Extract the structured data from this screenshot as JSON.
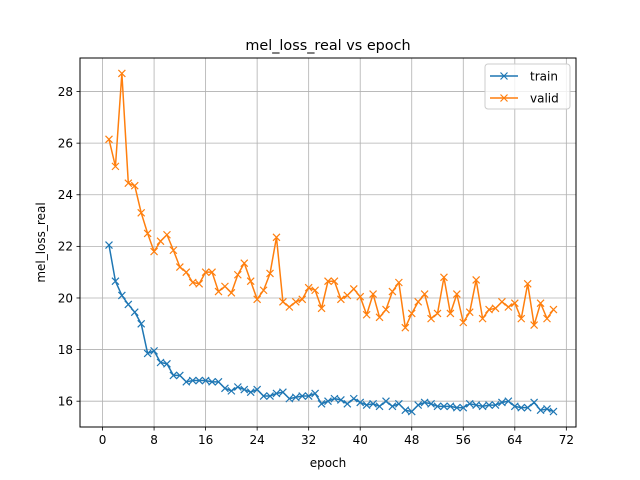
{
  "chart_data": {
    "type": "line",
    "title": "mel_loss_real vs epoch",
    "xlabel": "epoch",
    "ylabel": "mel_loss_real",
    "xlim": [
      -3.5,
      73.5
    ],
    "ylim": [
      15.0,
      29.3
    ],
    "xticks": [
      0,
      8,
      16,
      24,
      32,
      40,
      48,
      56,
      64,
      72
    ],
    "yticks": [
      16,
      18,
      20,
      22,
      24,
      26,
      28
    ],
    "grid": true,
    "legend_position": "top-right",
    "x": [
      1,
      2,
      3,
      4,
      5,
      6,
      7,
      8,
      9,
      10,
      11,
      12,
      13,
      14,
      15,
      16,
      17,
      18,
      19,
      20,
      21,
      22,
      23,
      24,
      25,
      26,
      27,
      28,
      29,
      30,
      31,
      32,
      33,
      34,
      35,
      36,
      37,
      38,
      39,
      40,
      41,
      42,
      43,
      44,
      45,
      46,
      47,
      48,
      49,
      50,
      51,
      52,
      53,
      54,
      55,
      56,
      57,
      58,
      59,
      60,
      61,
      62,
      63,
      64,
      65,
      66,
      67,
      68,
      69,
      70
    ],
    "series": [
      {
        "name": "train",
        "color": "#1f77b4",
        "values": [
          22.05,
          20.65,
          20.1,
          19.75,
          19.45,
          19.0,
          17.85,
          17.95,
          17.5,
          17.45,
          17.0,
          17.0,
          16.75,
          16.8,
          16.8,
          16.8,
          16.75,
          16.75,
          16.5,
          16.4,
          16.55,
          16.45,
          16.35,
          16.45,
          16.2,
          16.2,
          16.3,
          16.35,
          16.1,
          16.15,
          16.2,
          16.2,
          16.3,
          15.9,
          16.0,
          16.1,
          16.05,
          15.9,
          16.1,
          15.95,
          15.85,
          15.9,
          15.8,
          16.0,
          15.8,
          15.9,
          15.65,
          15.6,
          15.85,
          15.95,
          15.9,
          15.8,
          15.8,
          15.8,
          15.75,
          15.75,
          15.9,
          15.85,
          15.8,
          15.85,
          15.85,
          15.95,
          16.0,
          15.8,
          15.75,
          15.75,
          15.95,
          15.65,
          15.7,
          15.6
        ]
      },
      {
        "name": "valid",
        "color": "#ff7f0e",
        "values": [
          26.15,
          25.1,
          28.7,
          24.45,
          24.35,
          23.3,
          22.5,
          21.8,
          22.2,
          22.45,
          21.85,
          21.2,
          21.0,
          20.6,
          20.55,
          21.0,
          21.0,
          20.25,
          20.45,
          20.2,
          20.9,
          21.35,
          20.65,
          19.95,
          20.3,
          20.95,
          22.35,
          19.85,
          19.65,
          19.85,
          19.95,
          20.4,
          20.3,
          19.6,
          20.65,
          20.65,
          19.95,
          20.1,
          20.35,
          20.05,
          19.35,
          20.15,
          19.25,
          19.55,
          20.25,
          20.6,
          18.85,
          19.4,
          19.85,
          20.15,
          19.2,
          19.4,
          20.8,
          19.4,
          20.15,
          19.05,
          19.45,
          20.7,
          19.2,
          19.55,
          19.6,
          19.85,
          19.65,
          19.8,
          19.2,
          20.55,
          18.95,
          19.8,
          19.2,
          19.55
        ]
      }
    ]
  }
}
